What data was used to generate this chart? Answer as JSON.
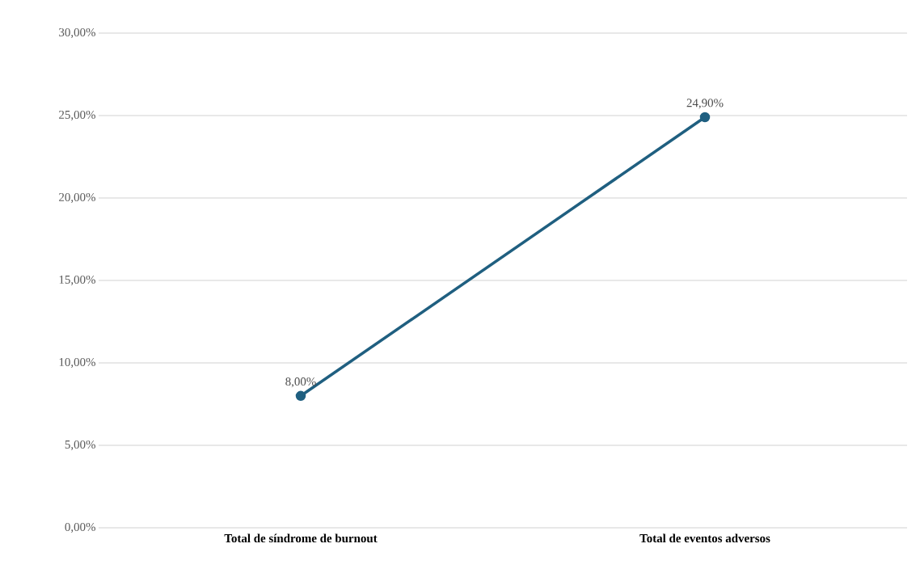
{
  "chart_data": {
    "type": "line",
    "categories": [
      "Total de síndrome de burnout",
      "Total de eventos adversos"
    ],
    "series": [
      {
        "color": "#1f5f80",
        "values": [
          8.0,
          24.9
        ],
        "value_labels": [
          "8,00%",
          "24,90%"
        ]
      }
    ],
    "ylim": [
      0,
      30
    ],
    "yticks": [
      {
        "value": 0,
        "label": "0,00%"
      },
      {
        "value": 5,
        "label": "5,00%"
      },
      {
        "value": 10,
        "label": "10,00%"
      },
      {
        "value": 15,
        "label": "15,00%"
      },
      {
        "value": 20,
        "label": "20,00%"
      },
      {
        "value": 25,
        "label": "25,00%"
      },
      {
        "value": 30,
        "label": "30,00%"
      }
    ],
    "grid": "y",
    "marker": "circle",
    "line_style": "solid"
  }
}
